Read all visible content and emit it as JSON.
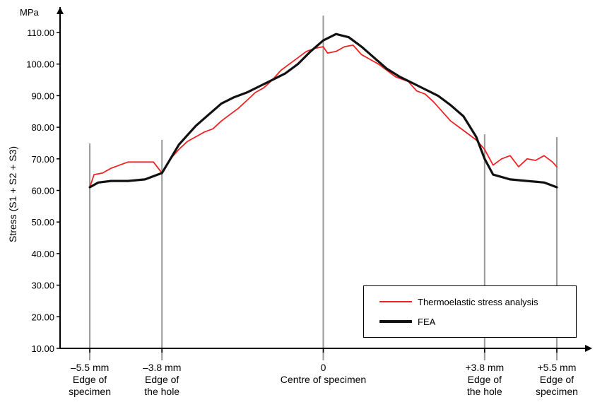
{
  "chart_data": {
    "type": "line",
    "unit": "MPa",
    "ylabel": "Stress (S1 + S2 + S3)",
    "ylim": [
      10,
      110
    ],
    "yticks": [
      "10.00",
      "20.00",
      "30.00",
      "40.00",
      "50.00",
      "60.00",
      "70.00",
      "80.00",
      "90.00",
      "100.00",
      "110.00"
    ],
    "xlim": [
      -6.2,
      6.2
    ],
    "markers": [
      {
        "x": -5.5,
        "line1": "–5.5 mm",
        "line2": "Edge of",
        "line3": "specimen"
      },
      {
        "x": -3.8,
        "line1": "–3.8 mm",
        "line2": "Edge of",
        "line3": "the hole"
      },
      {
        "x": 0,
        "line1": "0",
        "line2": "Centre of specimen",
        "line3": ""
      },
      {
        "x": 3.8,
        "line1": "+3.8 mm",
        "line2": "Edge of",
        "line3": "the hole"
      },
      {
        "x": 5.5,
        "line1": "+5.5 mm",
        "line2": "Edge of",
        "line3": "specimen"
      }
    ],
    "series": [
      {
        "name": "Thermoelastic stress analysis",
        "color": "#ee2222",
        "points": [
          [
            -5.5,
            61
          ],
          [
            -5.4,
            65
          ],
          [
            -5.2,
            65.5
          ],
          [
            -5.0,
            67
          ],
          [
            -4.8,
            68
          ],
          [
            -4.6,
            69
          ],
          [
            -4.3,
            69
          ],
          [
            -4.0,
            69
          ],
          [
            -3.8,
            65.5
          ],
          [
            -3.6,
            70
          ],
          [
            -3.4,
            73
          ],
          [
            -3.2,
            75.5
          ],
          [
            -3.0,
            77
          ],
          [
            -2.8,
            78.5
          ],
          [
            -2.6,
            79.5
          ],
          [
            -2.4,
            82
          ],
          [
            -2.2,
            84
          ],
          [
            -2.0,
            86
          ],
          [
            -1.8,
            88.5
          ],
          [
            -1.6,
            91
          ],
          [
            -1.4,
            92.5
          ],
          [
            -1.2,
            95
          ],
          [
            -1.0,
            98
          ],
          [
            -0.8,
            100
          ],
          [
            -0.6,
            102
          ],
          [
            -0.4,
            104
          ],
          [
            -0.2,
            105
          ],
          [
            0.0,
            105.5
          ],
          [
            0.1,
            103.5
          ],
          [
            0.3,
            104
          ],
          [
            0.5,
            105.5
          ],
          [
            0.7,
            106
          ],
          [
            0.9,
            103
          ],
          [
            1.1,
            101.5
          ],
          [
            1.3,
            100
          ],
          [
            1.5,
            98
          ],
          [
            1.7,
            96
          ],
          [
            2.0,
            94.5
          ],
          [
            2.2,
            91.5
          ],
          [
            2.4,
            90.5
          ],
          [
            2.6,
            88
          ],
          [
            2.8,
            85
          ],
          [
            3.0,
            82
          ],
          [
            3.2,
            80
          ],
          [
            3.4,
            78
          ],
          [
            3.6,
            76
          ],
          [
            3.8,
            73
          ],
          [
            4.0,
            68
          ],
          [
            4.2,
            70
          ],
          [
            4.4,
            71
          ],
          [
            4.6,
            67.5
          ],
          [
            4.8,
            70
          ],
          [
            5.0,
            69.5
          ],
          [
            5.2,
            71
          ],
          [
            5.4,
            69
          ],
          [
            5.5,
            67.5
          ]
        ]
      },
      {
        "name": "FEA",
        "color": "#111111",
        "points": [
          [
            -5.5,
            61
          ],
          [
            -5.3,
            62.5
          ],
          [
            -5.0,
            63
          ],
          [
            -4.6,
            63
          ],
          [
            -4.2,
            63.5
          ],
          [
            -3.8,
            65.5
          ],
          [
            -3.6,
            70
          ],
          [
            -3.4,
            74.5
          ],
          [
            -3.2,
            77.5
          ],
          [
            -3.0,
            80.5
          ],
          [
            -2.7,
            84
          ],
          [
            -2.4,
            87.5
          ],
          [
            -2.1,
            89.5
          ],
          [
            -1.8,
            91
          ],
          [
            -1.5,
            93
          ],
          [
            -1.2,
            95
          ],
          [
            -0.9,
            97
          ],
          [
            -0.6,
            100
          ],
          [
            -0.3,
            104
          ],
          [
            0.0,
            107.5
          ],
          [
            0.3,
            109.5
          ],
          [
            0.6,
            108.5
          ],
          [
            0.9,
            105.5
          ],
          [
            1.2,
            102
          ],
          [
            1.5,
            98.5
          ],
          [
            1.8,
            96
          ],
          [
            2.1,
            94
          ],
          [
            2.4,
            92
          ],
          [
            2.7,
            90
          ],
          [
            3.0,
            87
          ],
          [
            3.3,
            83.5
          ],
          [
            3.6,
            77
          ],
          [
            3.8,
            70
          ],
          [
            4.0,
            65
          ],
          [
            4.4,
            63.5
          ],
          [
            4.8,
            63
          ],
          [
            5.2,
            62.5
          ],
          [
            5.5,
            61
          ]
        ]
      }
    ],
    "legend_position": "bottom-right",
    "grid": false
  }
}
